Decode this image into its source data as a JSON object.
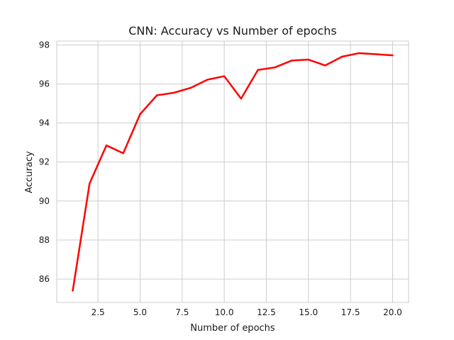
{
  "chart_data": {
    "type": "line",
    "title": "CNN: Accuracy vs Number of epochs",
    "xlabel": "Number of epochs",
    "ylabel": "Accuracy",
    "xlim": [
      0.05,
      20.95
    ],
    "ylim": [
      84.8,
      98.2
    ],
    "grid": true,
    "x_ticks": [
      2.5,
      5.0,
      7.5,
      10.0,
      12.5,
      15.0,
      17.5,
      20.0
    ],
    "x_tick_labels": [
      "2.5",
      "5.0",
      "7.5",
      "10.0",
      "12.5",
      "15.0",
      "17.5",
      "20.0"
    ],
    "y_ticks": [
      86,
      88,
      90,
      92,
      94,
      96,
      98
    ],
    "y_tick_labels": [
      "86",
      "88",
      "90",
      "92",
      "94",
      "96",
      "98"
    ],
    "series": [
      {
        "color": "#ff0000",
        "x": [
          1,
          2,
          3,
          4,
          5,
          6,
          7,
          8,
          9,
          10,
          11,
          12,
          13,
          14,
          15,
          16,
          17,
          18,
          19,
          20
        ],
        "values": [
          85.4,
          90.9,
          92.85,
          92.45,
          94.45,
          95.42,
          95.55,
          95.8,
          96.22,
          96.4,
          95.25,
          96.72,
          96.85,
          97.2,
          97.25,
          96.95,
          97.4,
          97.58,
          97.53,
          97.47
        ]
      }
    ]
  }
}
